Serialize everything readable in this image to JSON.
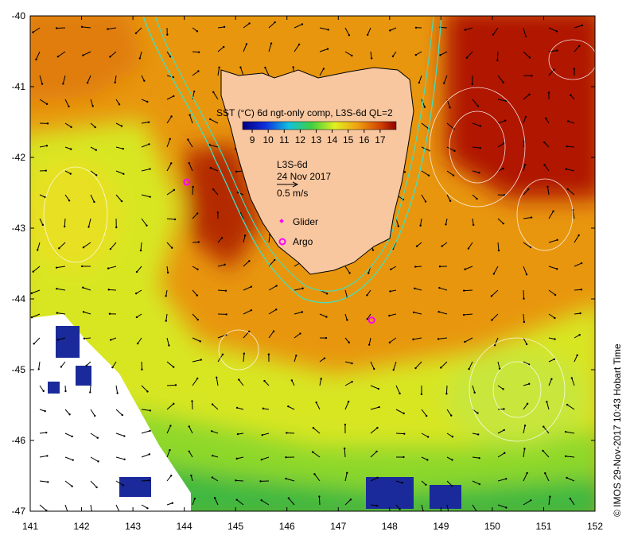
{
  "chart_data": {
    "type": "map",
    "legend_title": "SST (°C) 6d ngt-only comp, L3S-6d QL=2",
    "colorbar_lim": [
      8.4,
      18
    ],
    "colorbar_ticks": [
      9,
      10,
      11,
      12,
      13,
      14,
      15,
      16,
      17
    ],
    "product": "L3S-6d",
    "date": "24 Nov 2017",
    "vector_scale_label": "0.5 m/s",
    "markers": [
      {
        "name": "Glider",
        "color": "#ff00ff"
      },
      {
        "name": "Argo",
        "color": "#ff00ff"
      }
    ],
    "argo_points": {
      "x": [
        144.05,
        147.65
      ],
      "y": [
        -42.35,
        -44.3
      ]
    },
    "xlim": [
      141,
      152
    ],
    "ylim": [
      -47,
      -40
    ],
    "xticks": [
      141,
      142,
      143,
      144,
      145,
      146,
      147,
      148,
      149,
      150,
      151,
      152
    ],
    "yticks": [
      -47,
      -46,
      -45,
      -44,
      -43,
      -42,
      -41,
      -40
    ],
    "credit": "© IMOS 29-Nov-2017 10:43 Hobart Time"
  }
}
